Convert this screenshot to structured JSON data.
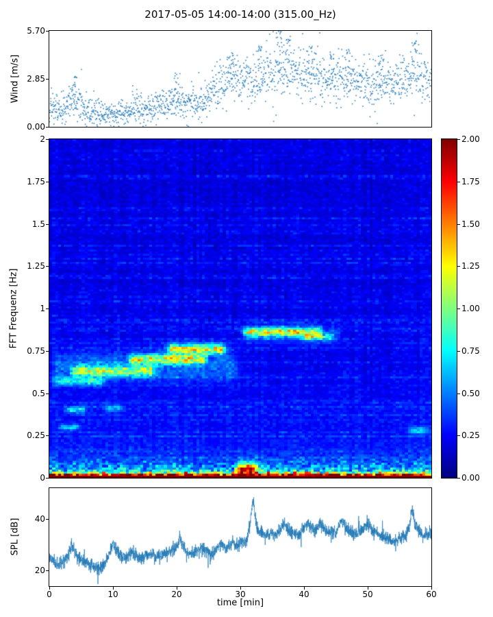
{
  "figure": {
    "title": "2017-05-05 14:00-14:00 (315.00_Hz)",
    "background": "#ffffff"
  },
  "chart_data": [
    {
      "id": "wind",
      "type": "scatter",
      "ylabel": "Wind [m/s]",
      "ylim": [
        0.0,
        5.7
      ],
      "xlim": [
        0,
        60
      ],
      "marker_color": "#1f77b4",
      "yticks": [
        {
          "v": 0.0,
          "label": "0.00"
        },
        {
          "v": 2.85,
          "label": "2.85"
        },
        {
          "v": 5.7,
          "label": "5.70"
        }
      ],
      "n_points": 1700,
      "trend_x": [
        0,
        2,
        4,
        6,
        8,
        10,
        12,
        14,
        16,
        18,
        20,
        22,
        24,
        26,
        28,
        30,
        32,
        34,
        36,
        38,
        40,
        42,
        44,
        46,
        48,
        50,
        52,
        54,
        56,
        58,
        60
      ],
      "trend_mean": [
        1.1,
        0.9,
        1.8,
        1.0,
        0.7,
        0.8,
        0.8,
        1.2,
        1.0,
        1.4,
        1.6,
        1.4,
        1.4,
        2.3,
        2.8,
        2.9,
        2.7,
        3.1,
        3.4,
        3.2,
        2.9,
        3.1,
        2.6,
        3.0,
        2.9,
        2.5,
        2.7,
        2.5,
        2.9,
        3.1,
        2.9
      ],
      "trend_spread": [
        0.5,
        0.45,
        0.6,
        0.45,
        0.35,
        0.35,
        0.35,
        0.5,
        0.4,
        0.5,
        0.55,
        0.5,
        0.5,
        0.6,
        0.7,
        0.7,
        0.7,
        0.75,
        0.9,
        0.8,
        0.7,
        0.75,
        0.7,
        0.7,
        0.7,
        0.65,
        0.7,
        0.65,
        0.7,
        0.8,
        0.7
      ],
      "bursts": [
        {
          "t": 33.0,
          "top": 4.8
        },
        {
          "t": 36.3,
          "top": 5.7
        },
        {
          "t": 37.2,
          "top": 5.2
        },
        {
          "t": 41.0,
          "top": 4.7
        },
        {
          "t": 44.5,
          "top": 4.5
        },
        {
          "t": 47.0,
          "top": 4.6
        },
        {
          "t": 52.0,
          "top": 4.3
        },
        {
          "t": 57.5,
          "top": 5.1
        },
        {
          "t": 28.5,
          "top": 4.4
        },
        {
          "t": 20.0,
          "top": 3.2
        },
        {
          "t": 4.0,
          "top": 3.0
        }
      ]
    },
    {
      "id": "spectrogram",
      "type": "heatmap",
      "ylabel": "FFT Frequenz [Hz]",
      "ylim": [
        0,
        2
      ],
      "xlim": [
        0,
        60
      ],
      "colormap": "jet",
      "clim": [
        0,
        2
      ],
      "yticks": [
        {
          "v": 2.0,
          "label": "2"
        },
        {
          "v": 1.75,
          "label": "1.75"
        },
        {
          "v": 1.5,
          "label": "1.5"
        },
        {
          "v": 1.25,
          "label": "1.25"
        },
        {
          "v": 1.0,
          "label": "1"
        },
        {
          "v": 0.75,
          "label": "0.75"
        },
        {
          "v": 0.5,
          "label": "0.5"
        },
        {
          "v": 0.25,
          "label": "0.25"
        },
        {
          "v": 0.0,
          "label": "0"
        }
      ],
      "colorbar_ticks": [
        {
          "v": 2.0,
          "label": "2.00"
        },
        {
          "v": 1.75,
          "label": "1.75"
        },
        {
          "v": 1.5,
          "label": "1.50"
        },
        {
          "v": 1.25,
          "label": "1.25"
        },
        {
          "v": 1.0,
          "label": "1.00"
        },
        {
          "v": 0.75,
          "label": "0.75"
        },
        {
          "v": 0.5,
          "label": "0.50"
        },
        {
          "v": 0.25,
          "label": "0.25"
        },
        {
          "v": 0.0,
          "label": "0.00"
        }
      ],
      "background": {
        "base": 0.1,
        "decay_amp": 0.16,
        "decay_scale": 0.55,
        "noise": 0.12
      },
      "lowfreq": {
        "band_amp": 2.3,
        "band_f": 0.02,
        "speckle_amp": 1.1,
        "speckle_f": 0.055,
        "mid_amp": 0.5,
        "mid_f": 0.12
      },
      "features": [
        {
          "t0": 0,
          "t1": 9,
          "f": 0.57,
          "fw": 0.025,
          "amp": 0.55
        },
        {
          "t0": 3,
          "t1": 17,
          "f": 0.63,
          "fw": 0.03,
          "amp": 0.75
        },
        {
          "t0": 12,
          "t1": 25,
          "f": 0.7,
          "fw": 0.028,
          "amp": 0.95
        },
        {
          "t0": 18,
          "t1": 28,
          "f": 0.76,
          "fw": 0.03,
          "amp": 1.05
        },
        {
          "t0": 30,
          "t1": 43,
          "f": 0.86,
          "fw": 0.027,
          "amp": 0.95
        },
        {
          "t0": 39,
          "t1": 45,
          "f": 0.83,
          "fw": 0.022,
          "amp": 0.6
        },
        {
          "t0": 2,
          "t1": 6,
          "f": 0.4,
          "fw": 0.02,
          "amp": 0.55
        },
        {
          "t0": 1,
          "t1": 5,
          "f": 0.3,
          "fw": 0.018,
          "amp": 0.45
        },
        {
          "t0": 8,
          "t1": 12,
          "f": 0.41,
          "fw": 0.02,
          "amp": 0.4
        },
        {
          "t0": 56,
          "t1": 60,
          "f": 0.28,
          "fw": 0.02,
          "amp": 0.5
        },
        {
          "t0": 29,
          "t1": 33,
          "f": 0.05,
          "fw": 0.04,
          "amp": 1.3
        },
        {
          "t0": 0,
          "t1": 30,
          "f": 0.66,
          "fw": 0.09,
          "amp": 0.28
        },
        {
          "t0": 30,
          "t1": 46,
          "f": 0.85,
          "fw": 0.05,
          "amp": 0.2
        }
      ]
    },
    {
      "id": "spl",
      "type": "line",
      "ylabel": "SPL [dB]",
      "xlabel": "time [min]",
      "ylim": [
        14,
        52
      ],
      "xlim": [
        0,
        60
      ],
      "line_color": "#1f77b4",
      "yticks": [
        {
          "v": 20,
          "label": "20"
        },
        {
          "v": 40,
          "label": "40"
        }
      ],
      "xticks": [
        {
          "v": 0,
          "label": "0"
        },
        {
          "v": 10,
          "label": "10"
        },
        {
          "v": 20,
          "label": "20"
        },
        {
          "v": 30,
          "label": "30"
        },
        {
          "v": 40,
          "label": "40"
        },
        {
          "v": 50,
          "label": "50"
        },
        {
          "v": 60,
          "label": "60"
        }
      ],
      "x_step": 0.5,
      "y": [
        26,
        24,
        23,
        22.5,
        23,
        24.5,
        26,
        30,
        27.5,
        25,
        24,
        23.5,
        23,
        22,
        21.5,
        21,
        20.5,
        22,
        24.5,
        27,
        30.5,
        28,
        26,
        25.5,
        25,
        26,
        27.5,
        26.5,
        25.5,
        25,
        25.5,
        26,
        26.5,
        26,
        25.5,
        26,
        26.5,
        27,
        27.5,
        28,
        29.5,
        32.5,
        29.5,
        27.5,
        26.5,
        27,
        27.5,
        28.5,
        29,
        28,
        27,
        26.5,
        27.5,
        29.5,
        30.5,
        29.5,
        29,
        30,
        31,
        30,
        30.5,
        31,
        32,
        38,
        47.5,
        38,
        35,
        34,
        33.5,
        34,
        35,
        34,
        35,
        36.5,
        38,
        36,
        35,
        34.5,
        34,
        35,
        36.5,
        38.5,
        37,
        35.5,
        37,
        38.5,
        37,
        35.5,
        35,
        34.5,
        35.5,
        37.5,
        39.5,
        37,
        35.5,
        35,
        34.5,
        35,
        35.5,
        36.5,
        38,
        36.5,
        35,
        34.5,
        34,
        33.5,
        33,
        32,
        31,
        31.5,
        32.5,
        33,
        34,
        36,
        44,
        38,
        35,
        34,
        33.5,
        34,
        34
      ]
    }
  ]
}
